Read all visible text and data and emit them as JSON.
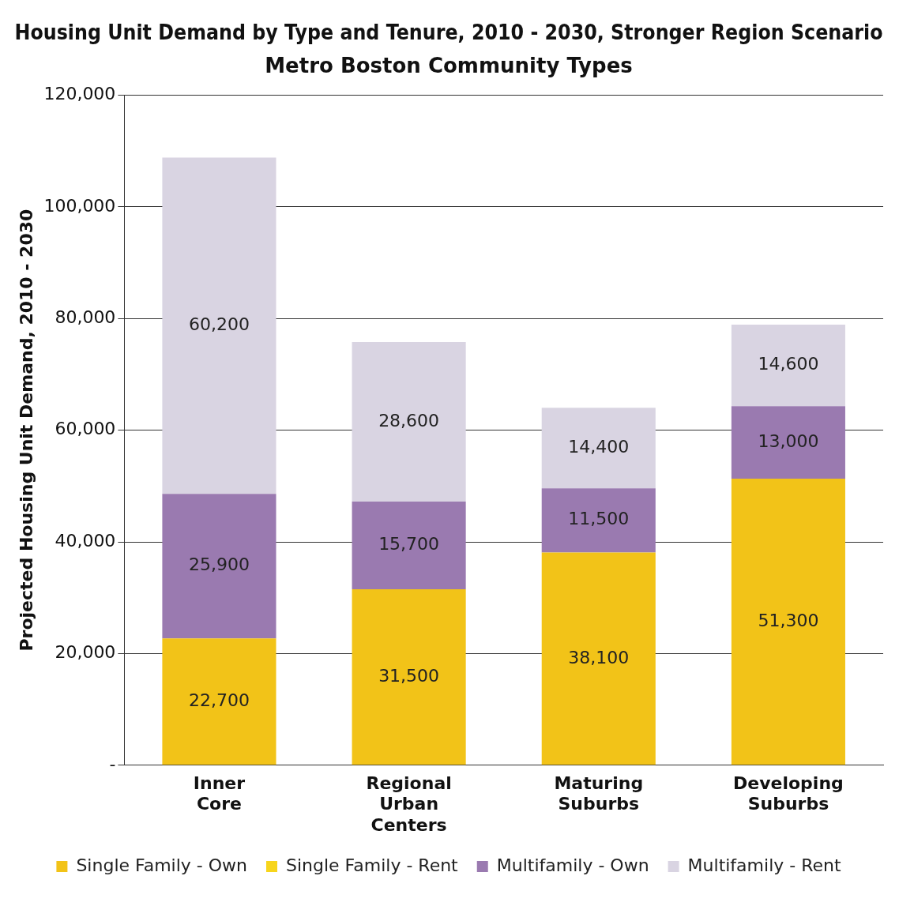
{
  "chart_data": {
    "type": "bar",
    "stacked": true,
    "title": "Housing Unit Demand by Type and Tenure, 2010 - 2030, Stronger Region Scenario",
    "subtitle": "Metro Boston Community Types",
    "ylabel": "Projected Housing Unit Demand, 2010 - 2030",
    "categories": [
      "Inner Core",
      "Regional Urban Centers",
      "Maturing Suburbs",
      "Developing Suburbs"
    ],
    "series": [
      {
        "name": "Single Family - Own",
        "color": "#f2c318",
        "values": [
          22700,
          31500,
          38100,
          51300
        ],
        "value_labels": [
          "22,700",
          "31,500",
          "38,100",
          "51,300"
        ]
      },
      {
        "name": "Single Family - Rent",
        "color": "#f7d51c",
        "values": [
          null,
          null,
          null,
          null
        ]
      },
      {
        "name": "Multifamily - Own",
        "color": "#9a7ab0",
        "values": [
          25900,
          15700,
          11500,
          13000
        ],
        "value_labels": [
          "25,900",
          "15,700",
          "11,500",
          "13,000"
        ]
      },
      {
        "name": "Multifamily - Rent",
        "color": "#d9d4e2",
        "values": [
          60200,
          28600,
          14400,
          14600
        ],
        "value_labels": [
          "60,200",
          "28,600",
          "14,400",
          "14,600"
        ]
      }
    ],
    "ylim": [
      0,
      120000
    ],
    "yticks": [
      {
        "value": 0,
        "label": "-"
      },
      {
        "value": 20000,
        "label": "20,000"
      },
      {
        "value": 40000,
        "label": "40,000"
      },
      {
        "value": 60000,
        "label": "60,000"
      },
      {
        "value": 80000,
        "label": "80,000"
      },
      {
        "value": 100000,
        "label": "100,000"
      },
      {
        "value": 120000,
        "label": "120,000"
      }
    ],
    "grid": "y",
    "legend": "bottom"
  }
}
